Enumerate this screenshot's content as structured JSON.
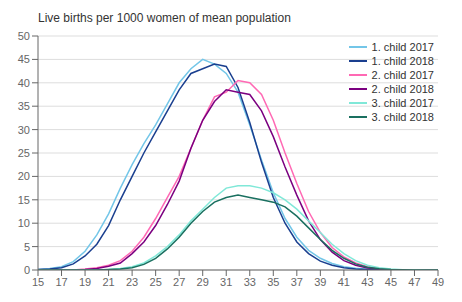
{
  "chart_data": {
    "type": "line",
    "title": "Live births per 1000 women of mean population",
    "x": [
      15,
      16,
      17,
      18,
      19,
      20,
      21,
      22,
      23,
      24,
      25,
      26,
      27,
      28,
      29,
      30,
      31,
      32,
      33,
      34,
      35,
      36,
      37,
      38,
      39,
      40,
      41,
      42,
      43,
      44,
      45,
      46,
      47,
      48,
      49
    ],
    "series": [
      {
        "name": "1. child 2017",
        "color": "#73C6E8",
        "values": [
          0.1,
          0.3,
          0.7,
          1.8,
          4.0,
          7.5,
          12.0,
          17.5,
          22.5,
          27.0,
          31.0,
          35.5,
          40.0,
          43.0,
          45.0,
          44.0,
          42.0,
          38.0,
          31.0,
          23.5,
          16.5,
          11.0,
          7.0,
          4.2,
          2.5,
          1.4,
          0.7,
          0.35,
          0.15,
          0.07,
          0.03,
          0.01,
          0.0,
          0.0,
          0.0
        ]
      },
      {
        "name": "1. child 2018",
        "color": "#1A3F8F",
        "values": [
          0.1,
          0.2,
          0.5,
          1.3,
          3.0,
          5.5,
          9.5,
          15.0,
          20.0,
          25.0,
          29.5,
          34.0,
          38.5,
          42.0,
          43.0,
          44.0,
          43.5,
          39.0,
          31.5,
          23.0,
          15.5,
          10.0,
          6.0,
          3.5,
          1.9,
          1.0,
          0.5,
          0.2,
          0.1,
          0.05,
          0.02,
          0.01,
          0.0,
          0.0,
          0.0
        ]
      },
      {
        "name": "2. child 2017",
        "color": "#FF69B4",
        "values": [
          0.0,
          0.0,
          0.0,
          0.0,
          0.2,
          0.5,
          1.0,
          2.0,
          4.0,
          7.0,
          11.0,
          15.5,
          20.0,
          26.0,
          32.0,
          37.0,
          38.0,
          40.5,
          40.0,
          37.5,
          32.0,
          25.0,
          18.5,
          12.5,
          8.0,
          4.8,
          2.8,
          1.5,
          0.7,
          0.3,
          0.12,
          0.05,
          0.02,
          0.01,
          0.0
        ]
      },
      {
        "name": "2. child 2018",
        "color": "#7B0080",
        "values": [
          0.0,
          0.0,
          0.0,
          0.0,
          0.1,
          0.3,
          0.8,
          1.5,
          3.5,
          6.0,
          9.5,
          14.0,
          19.0,
          26.0,
          32.0,
          36.0,
          38.5,
          38.0,
          37.5,
          34.0,
          28.5,
          22.0,
          16.0,
          10.5,
          6.5,
          3.8,
          2.0,
          1.0,
          0.45,
          0.2,
          0.08,
          0.03,
          0.01,
          0.0,
          0.0
        ]
      },
      {
        "name": "3. child 2017",
        "color": "#80E8D8",
        "values": [
          0.0,
          0.0,
          0.0,
          0.0,
          0.0,
          0.0,
          0.1,
          0.3,
          0.7,
          1.5,
          3.0,
          5.0,
          7.5,
          10.5,
          13.0,
          15.5,
          17.5,
          18.0,
          18.0,
          17.5,
          16.5,
          15.0,
          13.0,
          10.5,
          8.0,
          5.5,
          3.5,
          2.0,
          1.0,
          0.5,
          0.2,
          0.08,
          0.03,
          0.01,
          0.0
        ]
      },
      {
        "name": "3. child 2018",
        "color": "#1A7060",
        "values": [
          0.0,
          0.0,
          0.0,
          0.0,
          0.0,
          0.0,
          0.1,
          0.2,
          0.5,
          1.2,
          2.5,
          4.5,
          7.0,
          10.0,
          12.5,
          14.5,
          15.5,
          16.0,
          15.5,
          15.0,
          14.5,
          13.5,
          11.5,
          9.0,
          6.5,
          4.2,
          2.5,
          1.3,
          0.6,
          0.25,
          0.1,
          0.04,
          0.01,
          0.0,
          0.0
        ]
      }
    ],
    "xlim": [
      15,
      49
    ],
    "ylim": [
      0,
      50
    ],
    "xticks": [
      15,
      17,
      19,
      21,
      23,
      25,
      27,
      29,
      31,
      33,
      35,
      37,
      39,
      41,
      43,
      45,
      47,
      49
    ],
    "yticks": [
      0,
      5,
      10,
      15,
      20,
      25,
      30,
      35,
      40,
      45,
      50
    ],
    "grid": true,
    "legend": "upper right"
  }
}
